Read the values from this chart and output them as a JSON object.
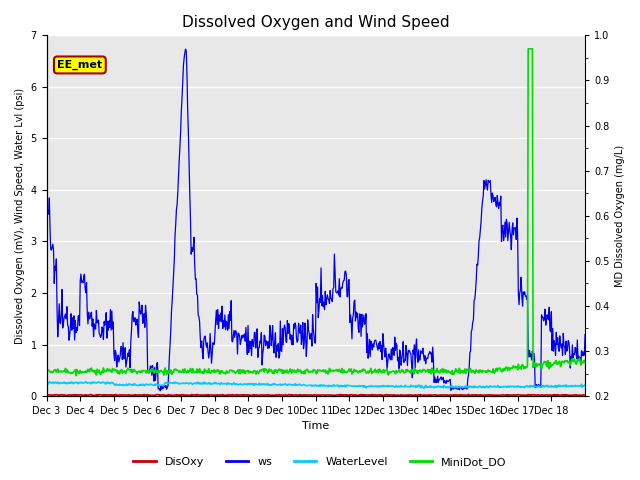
{
  "title": "Dissolved Oxygen and Wind Speed",
  "ylabel_left": "Dissolved Oxygen (mV), Wind Speed, Water Lvl (psi)",
  "ylabel_right": "MD Dissolved Oxygen (mg/L)",
  "xlabel": "Time",
  "ylim_left": [
    0.0,
    7.0
  ],
  "ylim_right": [
    0.2,
    1.0
  ],
  "annotation_text": "EE_met",
  "xtick_labels": [
    "Dec 3",
    "Dec 4",
    "Dec 5",
    "Dec 6",
    "Dec 7",
    "Dec 8",
    "Dec 9",
    "Dec 10",
    "Dec 11",
    "Dec 12",
    "Dec 13",
    "Dec 14",
    "Dec 15",
    "Dec 16",
    "Dec 17",
    "Dec 18"
  ],
  "series_colors": {
    "DisOxy": "#cc0000",
    "ws": "#0000ee",
    "WaterLevel": "#00ccff",
    "MiniDot_DO": "#00dd00"
  },
  "series_linewidths": {
    "DisOxy": 1.2,
    "ws": 0.9,
    "WaterLevel": 1.2,
    "MiniDot_DO": 1.2
  },
  "background_color": "#e8e8e8",
  "grid_color": "#ffffff",
  "title_fontsize": 11,
  "label_fontsize": 7,
  "tick_fontsize": 7
}
